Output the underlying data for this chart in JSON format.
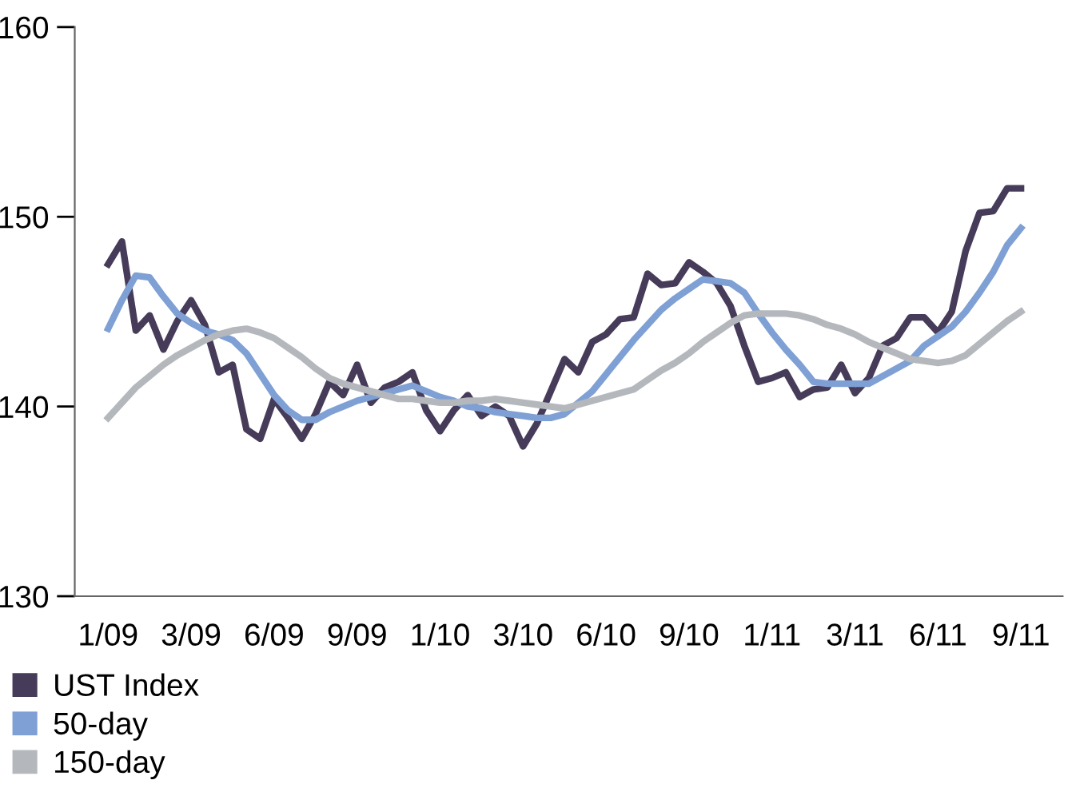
{
  "chart_data": {
    "type": "line",
    "ylim": [
      130,
      160
    ],
    "yticks": [
      130,
      140,
      150,
      160
    ],
    "categories": [
      "1/09",
      null,
      null,
      null,
      null,
      null,
      "3/09",
      null,
      null,
      null,
      null,
      null,
      "6/09",
      null,
      null,
      null,
      null,
      null,
      "9/09",
      null,
      null,
      null,
      null,
      null,
      "1/10",
      null,
      null,
      null,
      null,
      null,
      "3/10",
      null,
      null,
      null,
      null,
      null,
      "6/10",
      null,
      null,
      null,
      null,
      null,
      "9/10",
      null,
      null,
      null,
      null,
      null,
      "1/11",
      null,
      null,
      null,
      null,
      null,
      "3/11",
      null,
      null,
      null,
      null,
      null,
      "6/11",
      null,
      null,
      null,
      null,
      null,
      "9/11"
    ],
    "grid": false,
    "legend": "bottom left",
    "marker": "none",
    "line_style": "solid",
    "series": [
      {
        "name": "UST Index",
        "color": "#463c5a",
        "values": [
          147.5,
          148.7,
          144.0,
          144.8,
          143.0,
          144.5,
          145.6,
          144.3,
          141.8,
          142.2,
          138.8,
          138.3,
          140.4,
          139.4,
          138.3,
          139.6,
          141.3,
          140.6,
          142.2,
          140.2,
          141.0,
          141.3,
          141.8,
          139.8,
          138.7,
          139.8,
          140.6,
          139.5,
          140.0,
          139.5,
          137.9,
          139.1,
          140.8,
          142.5,
          141.8,
          143.4,
          143.8,
          144.6,
          144.7,
          147.0,
          146.4,
          146.5,
          147.6,
          147.1,
          146.5,
          145.3,
          143.2,
          141.3,
          141.5,
          141.8,
          140.5,
          140.9,
          141.0,
          142.2,
          140.7,
          141.5,
          143.2,
          143.6,
          144.7,
          144.7,
          143.9,
          145.0,
          148.2,
          150.2,
          150.3,
          151.5,
          151.5
        ]
      },
      {
        "name": "50-day",
        "color": "#7fa0d4",
        "values": [
          144.1,
          145.6,
          146.9,
          146.8,
          145.8,
          144.9,
          144.4,
          144.0,
          143.8,
          143.5,
          142.8,
          141.7,
          140.6,
          139.8,
          139.3,
          139.3,
          139.7,
          140.0,
          140.3,
          140.5,
          140.7,
          140.9,
          141.1,
          140.8,
          140.5,
          140.3,
          140.0,
          139.9,
          139.7,
          139.6,
          139.5,
          139.4,
          139.4,
          139.6,
          140.2,
          140.8,
          141.7,
          142.6,
          143.5,
          144.3,
          145.1,
          145.7,
          146.2,
          146.7,
          146.6,
          146.5,
          146.0,
          144.9,
          143.9,
          143.0,
          142.2,
          141.3,
          141.2,
          141.2,
          141.2,
          141.2,
          141.6,
          142.0,
          142.4,
          143.2,
          143.7,
          144.2,
          145.0,
          146.0,
          147.1,
          148.5,
          149.4
        ]
      },
      {
        "name": "150-day",
        "color": "#b4b8bd",
        "values": [
          139.4,
          140.2,
          141.0,
          141.6,
          142.2,
          142.7,
          143.1,
          143.5,
          143.8,
          144.0,
          144.1,
          143.9,
          143.6,
          143.1,
          142.6,
          142.0,
          141.5,
          141.2,
          141.0,
          140.8,
          140.6,
          140.4,
          140.4,
          140.3,
          140.2,
          140.2,
          140.3,
          140.3,
          140.4,
          140.3,
          140.2,
          140.1,
          140.0,
          139.9,
          140.1,
          140.3,
          140.5,
          140.7,
          140.9,
          141.4,
          141.9,
          142.3,
          142.8,
          143.4,
          143.9,
          144.4,
          144.8,
          144.9,
          144.9,
          144.9,
          144.8,
          144.6,
          144.3,
          144.1,
          143.8,
          143.4,
          143.1,
          142.8,
          142.5,
          142.4,
          142.3,
          142.4,
          142.7,
          143.3,
          143.9,
          144.5,
          145.0
        ]
      }
    ]
  }
}
